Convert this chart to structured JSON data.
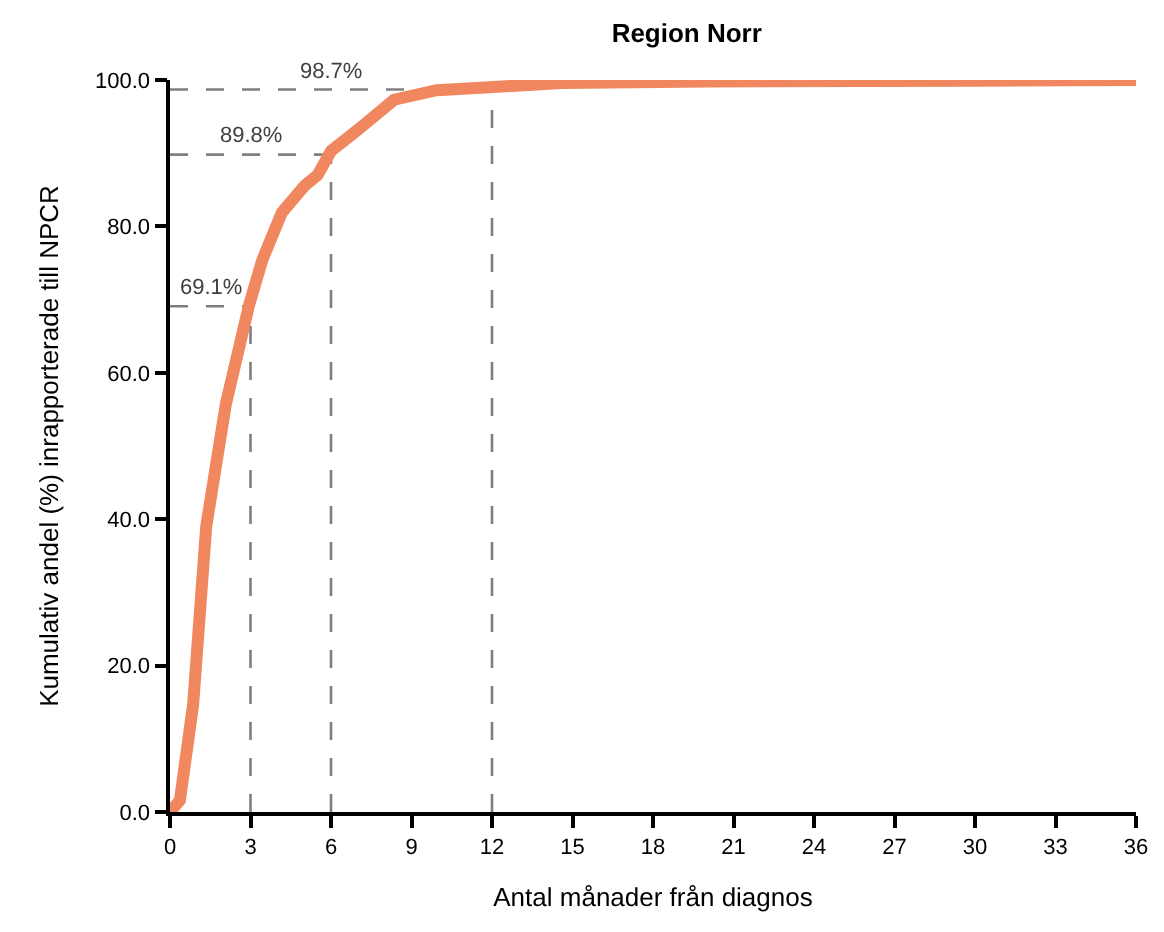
{
  "chart_data": {
    "type": "line",
    "title": "Region Norr",
    "xlabel": "Antal månader från diagnos",
    "ylabel": "Kumulativ andel (%) inrapporterade till NPCR",
    "x": [
      0,
      0.37,
      0.86,
      1.35,
      2.08,
      2.95,
      3.44,
      4.17,
      5.03,
      5.5,
      6.0,
      7.0,
      8.35,
      9.94,
      11.9,
      14.6,
      20,
      30,
      36
    ],
    "series": [
      {
        "color": "#f0875e",
        "values": [
          0,
          1.6,
          14.6,
          39,
          55.7,
          69.3,
          75.4,
          81.9,
          85.6,
          87,
          90.3,
          93.2,
          97.3,
          98.6,
          99,
          99.6,
          99.8,
          99.9,
          100
        ]
      }
    ],
    "xlim": [
      0,
      36
    ],
    "xticks": [
      0,
      3,
      6,
      9,
      12,
      15,
      18,
      21,
      24,
      27,
      30,
      33,
      36
    ],
    "ylim": [
      0,
      100
    ],
    "yticks": [
      {
        "value": 0,
        "label": "0.0"
      },
      {
        "value": 20,
        "label": "20.0"
      },
      {
        "value": 40,
        "label": "40.0"
      },
      {
        "value": 60,
        "label": "60.0"
      },
      {
        "value": 80,
        "label": "80.0"
      },
      {
        "value": 100,
        "label": "100.0"
      }
    ],
    "ref_lines": [
      {
        "axis": "y",
        "value": 69.1,
        "label": "69.1%",
        "color": "#7f7f7f",
        "line_style": "dashed"
      },
      {
        "axis": "y",
        "value": 89.8,
        "label": "89.8%",
        "color": "#7f7f7f",
        "line_style": "dashed"
      },
      {
        "axis": "y",
        "value": 98.7,
        "label": "98.7%",
        "color": "#7f7f7f",
        "line_style": "dashed"
      },
      {
        "axis": "x",
        "value": 3,
        "color": "#7f7f7f",
        "line_style": "dashed"
      },
      {
        "axis": "x",
        "value": 6,
        "color": "#7f7f7f",
        "line_style": "dashed"
      },
      {
        "axis": "x",
        "value": 12,
        "color": "#7f7f7f",
        "line_style": "dashed"
      }
    ],
    "grid": false,
    "marker": "none",
    "line_style": "solid"
  }
}
